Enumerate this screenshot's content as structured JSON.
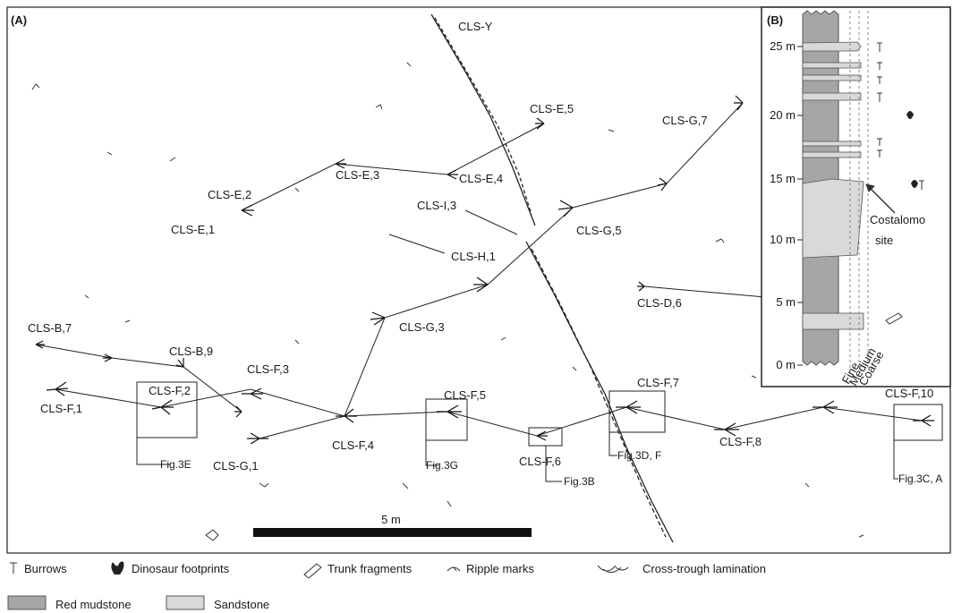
{
  "panel_a": {
    "label": "(A)",
    "labels": [
      "CLS-Y",
      "CLS-E,5",
      "CLS-G,7",
      "CLS-E,3",
      "CLS-E,4",
      "CLS-E,2",
      "CLS-I,3",
      "CLS-E,1",
      "CLS-G,5",
      "CLS-H,1",
      "CLS-D,6",
      "CLS-G,3",
      "CLS-B,7",
      "CLS-B,9",
      "CLS-F,3",
      "CLS-F,2",
      "CLS-F,5",
      "CLS-F,7",
      "CLS-F,10",
      "CLS-F,1",
      "CLS-F,4",
      "CLS-G,1",
      "CLS-F,6",
      "CLS-F,8"
    ],
    "figure_refs": [
      "Fig.3E",
      "Fig.3G",
      "Fig.3D, F",
      "Fig.3B",
      "Fig.3C, A"
    ],
    "scale": "5 m"
  },
  "panel_b": {
    "label": "(B)",
    "ticks": [
      "0 m",
      "5 m",
      "10 m",
      "15 m",
      "20 m",
      "25 m"
    ],
    "grain_sizes": [
      "Fine",
      "Medium",
      "Coarse"
    ],
    "site": [
      "Costalomo",
      "site"
    ]
  },
  "legend": {
    "items": [
      "Burrows",
      "Dinosaur footprints",
      "Trunk fragments",
      "Ripple marks",
      "Cross-trough lamination"
    ],
    "lithology": [
      "Red mudstone",
      "Sandstone"
    ]
  }
}
